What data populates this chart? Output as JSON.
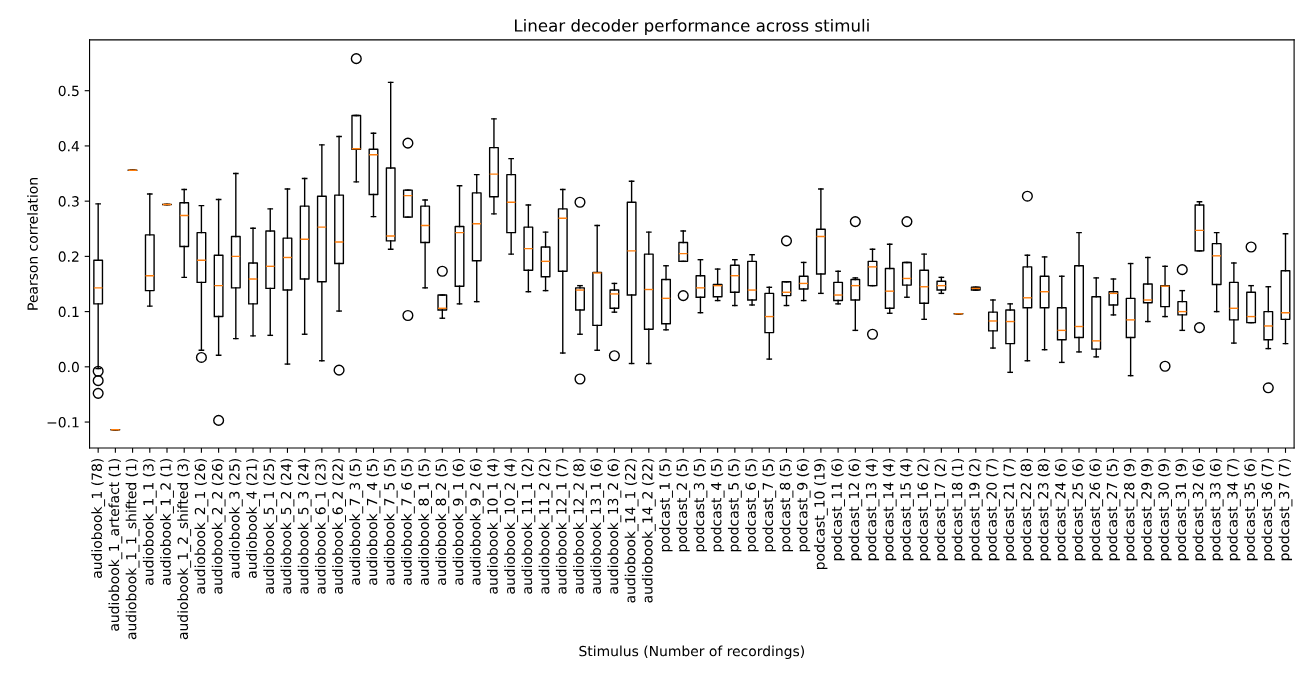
{
  "chart_data": {
    "type": "box",
    "title": "Linear decoder performance across stimuli",
    "xlabel": "Stimulus (Number of recordings)",
    "ylabel": "Pearson correlation",
    "categories": [
      "audiobook_1 (78)",
      "audiobook_1_artefact (1)",
      "audiobook_1_1_shifted (1)",
      "audiobook_1_1 (3)",
      "audiobook_1_2 (1)",
      "audiobook_1_2_shifted (3)",
      "audiobook_2_1 (26)",
      "audiobook_2_2 (26)",
      "audiobook_3 (25)",
      "audiobook_4 (21)",
      "audiobook_5_1 (25)",
      "audiobook_5_2 (24)",
      "audiobook_5_3 (24)",
      "audiobook_6_1 (23)",
      "audiobook_6_2 (22)",
      "audiobook_7_3 (5)",
      "audiobook_7_4 (5)",
      "audiobook_7_5 (5)",
      "audiobook_7_6 (5)",
      "audiobook_8_1 (5)",
      "audiobook_8_2 (5)",
      "audiobook_9_1 (6)",
      "audiobook_9_2 (6)",
      "audiobook_10_1 (4)",
      "audiobook_10_2 (4)",
      "audiobook_11_1 (2)",
      "audiobook_11_2 (2)",
      "audiobook_12_1 (7)",
      "audiobook_12_2 (8)",
      "audiobook_13_1 (6)",
      "audiobook_13_2 (6)",
      "audiobook_14_1 (22)",
      "audiobook_14_2 (22)",
      "podcast_1 (5)",
      "podcast_2 (5)",
      "podcast_3 (5)",
      "podcast_4 (5)",
      "podcast_5 (5)",
      "podcast_6 (5)",
      "podcast_7 (5)",
      "podcast_8 (5)",
      "podcast_9 (6)",
      "podcast_10 (19)",
      "podcast_11 (6)",
      "podcast_12 (6)",
      "podcast_13 (4)",
      "podcast_14 (4)",
      "podcast_15 (4)",
      "podcast_16 (2)",
      "podcast_17 (2)",
      "podcast_18 (1)",
      "podcast_19 (2)",
      "podcast_20 (7)",
      "podcast_21 (7)",
      "podcast_22 (8)",
      "podcast_23 (8)",
      "podcast_24 (6)",
      "podcast_25 (6)",
      "podcast_26 (6)",
      "podcast_27 (5)",
      "podcast_28 (9)",
      "podcast_29 (9)",
      "podcast_30 (9)",
      "podcast_31 (9)",
      "podcast_32 (6)",
      "podcast_33 (6)",
      "podcast_34 (7)",
      "podcast_35 (6)",
      "podcast_36 (7)",
      "podcast_37 (7)"
    ],
    "boxes": [
      {
        "low": -0.003,
        "q1": 0.114,
        "median": 0.143,
        "q3": 0.193,
        "high": 0.295,
        "outliers": [
          -0.008,
          -0.025,
          -0.048
        ]
      },
      {
        "low": -0.114,
        "q1": -0.114,
        "median": -0.114,
        "q3": -0.114,
        "high": -0.114
      },
      {
        "low": 0.356,
        "q1": 0.356,
        "median": 0.356,
        "q3": 0.356,
        "high": 0.356
      },
      {
        "low": 0.11,
        "q1": 0.138,
        "median": 0.165,
        "q3": 0.239,
        "high": 0.313
      },
      {
        "low": 0.294,
        "q1": 0.294,
        "median": 0.294,
        "q3": 0.294,
        "high": 0.294
      },
      {
        "low": 0.162,
        "q1": 0.218,
        "median": 0.274,
        "q3": 0.297,
        "high": 0.321
      },
      {
        "low": 0.03,
        "q1": 0.153,
        "median": 0.193,
        "q3": 0.243,
        "high": 0.292,
        "outliers": [
          0.017
        ]
      },
      {
        "low": 0.021,
        "q1": 0.091,
        "median": 0.147,
        "q3": 0.202,
        "high": 0.303,
        "outliers": [
          -0.097
        ]
      },
      {
        "low": 0.051,
        "q1": 0.143,
        "median": 0.2,
        "q3": 0.236,
        "high": 0.35
      },
      {
        "low": 0.056,
        "q1": 0.114,
        "median": 0.159,
        "q3": 0.188,
        "high": 0.251
      },
      {
        "low": 0.057,
        "q1": 0.142,
        "median": 0.182,
        "q3": 0.246,
        "high": 0.286
      },
      {
        "low": 0.005,
        "q1": 0.139,
        "median": 0.198,
        "q3": 0.233,
        "high": 0.322
      },
      {
        "low": 0.059,
        "q1": 0.159,
        "median": 0.231,
        "q3": 0.291,
        "high": 0.341
      },
      {
        "low": 0.011,
        "q1": 0.154,
        "median": 0.253,
        "q3": 0.309,
        "high": 0.402
      },
      {
        "low": 0.101,
        "q1": 0.187,
        "median": 0.226,
        "q3": 0.311,
        "high": 0.417,
        "outliers": [
          -0.006
        ]
      },
      {
        "low": 0.335,
        "q1": 0.394,
        "median": 0.395,
        "q3": 0.455,
        "high": 0.455,
        "outliers": [
          0.558
        ]
      },
      {
        "low": 0.272,
        "q1": 0.312,
        "median": 0.384,
        "q3": 0.394,
        "high": 0.423
      },
      {
        "low": 0.213,
        "q1": 0.228,
        "median": 0.237,
        "q3": 0.36,
        "high": 0.515
      },
      {
        "low": 0.271,
        "q1": 0.271,
        "median": 0.31,
        "q3": 0.32,
        "high": 0.32,
        "outliers": [
          0.405,
          0.093
        ]
      },
      {
        "low": 0.143,
        "q1": 0.225,
        "median": 0.256,
        "q3": 0.291,
        "high": 0.302
      },
      {
        "low": 0.088,
        "q1": 0.103,
        "median": 0.106,
        "q3": 0.13,
        "high": 0.13,
        "outliers": [
          0.173
        ]
      },
      {
        "low": 0.114,
        "q1": 0.146,
        "median": 0.243,
        "q3": 0.254,
        "high": 0.328
      },
      {
        "low": 0.118,
        "q1": 0.192,
        "median": 0.259,
        "q3": 0.315,
        "high": 0.348
      },
      {
        "low": 0.277,
        "q1": 0.308,
        "median": 0.349,
        "q3": 0.397,
        "high": 0.449
      },
      {
        "low": 0.204,
        "q1": 0.243,
        "median": 0.298,
        "q3": 0.348,
        "high": 0.377
      },
      {
        "low": 0.136,
        "q1": 0.175,
        "median": 0.214,
        "q3": 0.253,
        "high": 0.293
      },
      {
        "low": 0.138,
        "q1": 0.163,
        "median": 0.191,
        "q3": 0.217,
        "high": 0.244
      },
      {
        "low": 0.025,
        "q1": 0.173,
        "median": 0.269,
        "q3": 0.286,
        "high": 0.321
      },
      {
        "low": 0.059,
        "q1": 0.103,
        "median": 0.139,
        "q3": 0.143,
        "high": 0.147,
        "outliers": [
          0.298,
          -0.022
        ]
      },
      {
        "low": 0.03,
        "q1": 0.075,
        "median": 0.17,
        "q3": 0.171,
        "high": 0.256
      },
      {
        "low": 0.099,
        "q1": 0.106,
        "median": 0.132,
        "q3": 0.139,
        "high": 0.151,
        "outliers": [
          0.02
        ]
      },
      {
        "low": 0.006,
        "q1": 0.13,
        "median": 0.21,
        "q3": 0.298,
        "high": 0.336
      },
      {
        "low": 0.006,
        "q1": 0.068,
        "median": 0.14,
        "q3": 0.204,
        "high": 0.244
      },
      {
        "low": 0.067,
        "q1": 0.078,
        "median": 0.124,
        "q3": 0.158,
        "high": 0.183
      },
      {
        "low": 0.191,
        "q1": 0.191,
        "median": 0.205,
        "q3": 0.225,
        "high": 0.246,
        "outliers": [
          0.129
        ]
      },
      {
        "low": 0.098,
        "q1": 0.126,
        "median": 0.143,
        "q3": 0.165,
        "high": 0.194
      },
      {
        "low": 0.12,
        "q1": 0.127,
        "median": 0.147,
        "q3": 0.149,
        "high": 0.177
      },
      {
        "low": 0.111,
        "q1": 0.135,
        "median": 0.165,
        "q3": 0.184,
        "high": 0.194
      },
      {
        "low": 0.112,
        "q1": 0.121,
        "median": 0.139,
        "q3": 0.191,
        "high": 0.203
      },
      {
        "low": 0.014,
        "q1": 0.062,
        "median": 0.091,
        "q3": 0.133,
        "high": 0.144
      },
      {
        "low": 0.111,
        "q1": 0.129,
        "median": 0.135,
        "q3": 0.154,
        "high": 0.154,
        "outliers": [
          0.228
        ]
      },
      {
        "low": 0.12,
        "q1": 0.141,
        "median": 0.151,
        "q3": 0.164,
        "high": 0.189
      },
      {
        "low": 0.133,
        "q1": 0.168,
        "median": 0.236,
        "q3": 0.249,
        "high": 0.322
      },
      {
        "low": 0.114,
        "q1": 0.12,
        "median": 0.13,
        "q3": 0.153,
        "high": 0.173
      },
      {
        "low": 0.066,
        "q1": 0.121,
        "median": 0.147,
        "q3": 0.158,
        "high": 0.161,
        "outliers": [
          0.263
        ]
      },
      {
        "low": 0.147,
        "q1": 0.147,
        "median": 0.181,
        "q3": 0.191,
        "high": 0.213,
        "outliers": [
          0.059
        ]
      },
      {
        "low": 0.097,
        "q1": 0.106,
        "median": 0.137,
        "q3": 0.178,
        "high": 0.222
      },
      {
        "low": 0.126,
        "q1": 0.148,
        "median": 0.16,
        "q3": 0.189,
        "high": 0.189,
        "outliers": [
          0.263
        ]
      },
      {
        "low": 0.086,
        "q1": 0.115,
        "median": 0.145,
        "q3": 0.175,
        "high": 0.204
      },
      {
        "low": 0.133,
        "q1": 0.139,
        "median": 0.147,
        "q3": 0.155,
        "high": 0.162
      },
      {
        "low": 0.096,
        "q1": 0.096,
        "median": 0.096,
        "q3": 0.096,
        "high": 0.096
      },
      {
        "low": 0.139,
        "q1": 0.139,
        "median": 0.142,
        "q3": 0.144,
        "high": 0.144
      },
      {
        "low": 0.034,
        "q1": 0.065,
        "median": 0.083,
        "q3": 0.099,
        "high": 0.121
      },
      {
        "low": -0.01,
        "q1": 0.042,
        "median": 0.082,
        "q3": 0.103,
        "high": 0.114
      },
      {
        "low": 0.011,
        "q1": 0.107,
        "median": 0.125,
        "q3": 0.181,
        "high": 0.202,
        "outliers": [
          0.309
        ]
      },
      {
        "low": 0.031,
        "q1": 0.107,
        "median": 0.136,
        "q3": 0.164,
        "high": 0.199
      },
      {
        "low": 0.008,
        "q1": 0.049,
        "median": 0.066,
        "q3": 0.107,
        "high": 0.164
      },
      {
        "low": 0.027,
        "q1": 0.053,
        "median": 0.073,
        "q3": 0.183,
        "high": 0.243
      },
      {
        "low": 0.018,
        "q1": 0.032,
        "median": 0.047,
        "q3": 0.127,
        "high": 0.161
      },
      {
        "low": 0.094,
        "q1": 0.112,
        "median": 0.133,
        "q3": 0.136,
        "high": 0.159
      },
      {
        "low": -0.016,
        "q1": 0.053,
        "median": 0.085,
        "q3": 0.124,
        "high": 0.187
      },
      {
        "low": 0.082,
        "q1": 0.116,
        "median": 0.121,
        "q3": 0.15,
        "high": 0.198
      },
      {
        "low": 0.091,
        "q1": 0.109,
        "median": 0.146,
        "q3": 0.147,
        "high": 0.182,
        "outliers": [
          0.001
        ]
      },
      {
        "low": 0.066,
        "q1": 0.094,
        "median": 0.1,
        "q3": 0.118,
        "high": 0.138,
        "outliers": [
          0.176
        ]
      },
      {
        "low": 0.21,
        "q1": 0.21,
        "median": 0.247,
        "q3": 0.293,
        "high": 0.299,
        "outliers": [
          0.071
        ]
      },
      {
        "low": 0.1,
        "q1": 0.149,
        "median": 0.201,
        "q3": 0.223,
        "high": 0.243
      },
      {
        "low": 0.043,
        "q1": 0.085,
        "median": 0.106,
        "q3": 0.153,
        "high": 0.188
      },
      {
        "low": 0.08,
        "q1": 0.08,
        "median": 0.091,
        "q3": 0.135,
        "high": 0.147,
        "outliers": [
          0.217
        ]
      },
      {
        "low": 0.033,
        "q1": 0.049,
        "median": 0.074,
        "q3": 0.1,
        "high": 0.145,
        "outliers": [
          -0.038
        ]
      },
      {
        "low": 0.042,
        "q1": 0.086,
        "median": 0.098,
        "q3": 0.174,
        "high": 0.241
      }
    ],
    "ylim": [
      -0.147,
      0.592
    ],
    "yticks": [
      {
        "value": -0.1,
        "label": "−0.1"
      },
      {
        "value": 0.0,
        "label": "0.0"
      },
      {
        "value": 0.1,
        "label": "0.1"
      },
      {
        "value": 0.2,
        "label": "0.2"
      },
      {
        "value": 0.3,
        "label": "0.3"
      },
      {
        "value": 0.4,
        "label": "0.4"
      },
      {
        "value": 0.5,
        "label": "0.5"
      }
    ]
  }
}
